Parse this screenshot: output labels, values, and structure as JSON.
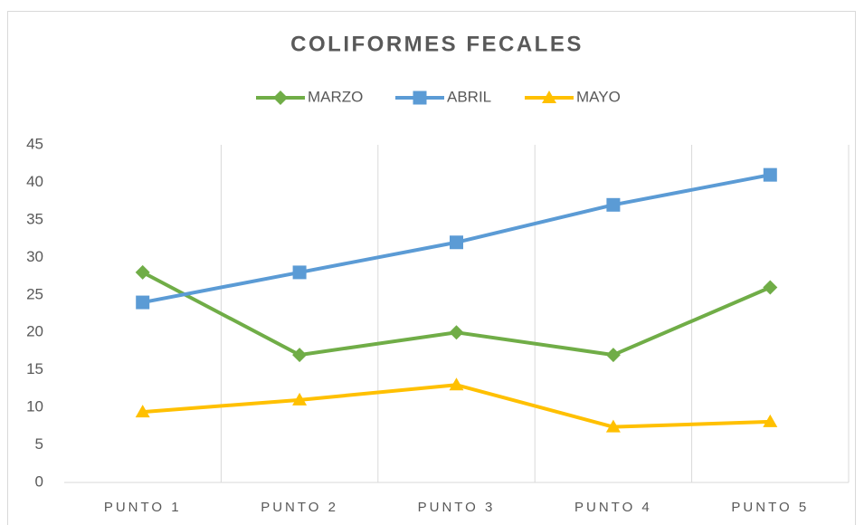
{
  "chart_data": {
    "type": "line",
    "title": "COLIFORMES FECALES",
    "categories": [
      "PUNTO 1",
      "PUNTO 2",
      "PUNTO 3",
      "PUNTO 4",
      "PUNTO 5"
    ],
    "series": [
      {
        "name": "MARZO",
        "color": "#70ad47",
        "marker": "diamond",
        "values": [
          28,
          17,
          20,
          17,
          26
        ]
      },
      {
        "name": "ABRIL",
        "color": "#5b9bd5",
        "marker": "square",
        "values": [
          24,
          28,
          32,
          37,
          41
        ]
      },
      {
        "name": "MAYO",
        "color": "#ffc000",
        "marker": "triangle",
        "values": [
          9.4,
          11,
          13,
          7.4,
          8.1
        ]
      }
    ],
    "ylim": [
      0,
      45
    ],
    "yticks": [
      0,
      5,
      10,
      15,
      20,
      25,
      30,
      35,
      40,
      45
    ],
    "grid": false,
    "legend": "top"
  }
}
